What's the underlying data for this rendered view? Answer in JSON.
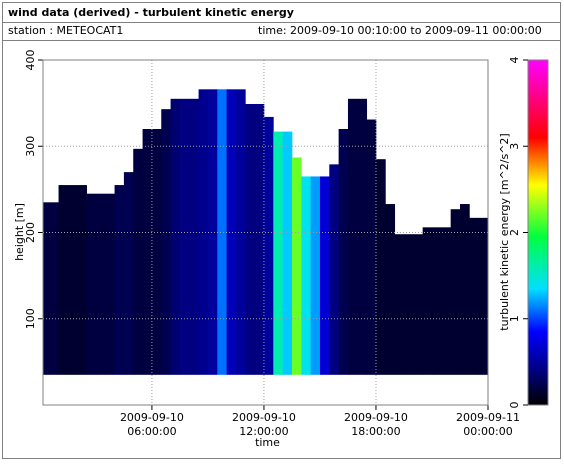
{
  "header": {
    "title": "wind data (derived) - turbulent kinetic energy",
    "station": "station : METEOCAT1",
    "time": "time: 2009-09-10 00:10:00 to 2009-09-11 00:00:00"
  },
  "chart_data": {
    "type": "heatmap-columns",
    "xlabel": "time",
    "ylabel": "height [m]",
    "colorbar_label": "turbulent kinetic energy [m^2/s^2]",
    "xlim": [
      "2009-09-10 00:10:00",
      "2009-09-11 00:00:00"
    ],
    "xticks": [
      {
        "value": "2009-09-10 06:00:00",
        "label": "2009-09-10 06:00:00"
      },
      {
        "value": "2009-09-10 12:00:00",
        "label": "2009-09-10 12:00:00"
      },
      {
        "value": "2009-09-10 18:00:00",
        "label": "2009-09-10 18:00:00"
      },
      {
        "value": "2009-09-11 00:00:00",
        "label": "2009-09-11 00:00:00"
      }
    ],
    "ylim": [
      0,
      400
    ],
    "yticks": [
      100,
      200,
      300,
      400
    ],
    "clim": [
      0,
      4
    ],
    "cticks": [
      0,
      1,
      2,
      3,
      4
    ],
    "colormap": [
      [
        0,
        "#000000"
      ],
      [
        0.4,
        "#000080"
      ],
      [
        0.85,
        "#0000ff"
      ],
      [
        1.35,
        "#00e0ff"
      ],
      [
        1.95,
        "#00ff40"
      ],
      [
        2.55,
        "#ffff00"
      ],
      [
        3.1,
        "#ff0000"
      ],
      [
        4,
        "#ff00ff"
      ]
    ],
    "grid": true,
    "base": 35,
    "x": [
      "2009-09-10 00:00:00",
      "2009-09-10 00:30:00",
      "2009-09-10 01:00:00",
      "2009-09-10 01:30:00",
      "2009-09-10 02:00:00",
      "2009-09-10 02:30:00",
      "2009-09-10 03:00:00",
      "2009-09-10 03:30:00",
      "2009-09-10 04:00:00",
      "2009-09-10 04:30:00",
      "2009-09-10 05:00:00",
      "2009-09-10 05:30:00",
      "2009-09-10 06:00:00",
      "2009-09-10 06:30:00",
      "2009-09-10 07:00:00",
      "2009-09-10 07:30:00",
      "2009-09-10 08:00:00",
      "2009-09-10 08:30:00",
      "2009-09-10 09:00:00",
      "2009-09-10 09:30:00",
      "2009-09-10 10:00:00",
      "2009-09-10 10:30:00",
      "2009-09-10 11:00:00",
      "2009-09-10 11:30:00",
      "2009-09-10 12:00:00",
      "2009-09-10 12:30:00",
      "2009-09-10 13:00:00",
      "2009-09-10 13:30:00",
      "2009-09-10 14:00:00",
      "2009-09-10 14:30:00",
      "2009-09-10 15:00:00",
      "2009-09-10 15:30:00",
      "2009-09-10 16:00:00",
      "2009-09-10 16:30:00",
      "2009-09-10 17:00:00",
      "2009-09-10 17:30:00",
      "2009-09-10 18:00:00",
      "2009-09-10 18:30:00",
      "2009-09-10 19:00:00",
      "2009-09-10 19:30:00",
      "2009-09-10 20:00:00",
      "2009-09-10 20:30:00",
      "2009-09-10 21:00:00",
      "2009-09-10 21:30:00",
      "2009-09-10 22:00:00",
      "2009-09-10 22:30:00",
      "2009-09-10 23:00:00",
      "2009-09-10 23:30:00"
    ],
    "top": [
      235,
      235,
      255,
      255,
      255,
      245,
      245,
      245,
      255,
      270,
      297,
      320,
      320,
      343,
      355,
      355,
      355,
      366,
      366,
      366,
      366,
      366,
      349,
      349,
      334,
      317,
      317,
      287,
      265,
      265,
      265,
      279,
      320,
      355,
      355,
      331,
      285,
      233,
      198,
      198,
      198,
      206,
      206,
      206,
      227,
      233,
      217,
      217
    ],
    "values": [
      0.2,
      0.2,
      0.15,
      0.15,
      0.15,
      0.2,
      0.2,
      0.2,
      0.25,
      0.25,
      0.2,
      0.2,
      0.2,
      0.25,
      0.35,
      0.4,
      0.4,
      0.45,
      0.5,
      1.1,
      0.6,
      0.5,
      0.4,
      0.4,
      0.5,
      1.6,
      1.3,
      2.2,
      1.4,
      1.2,
      0.7,
      0.4,
      0.25,
      0.2,
      0.2,
      0.2,
      0.15,
      0.15,
      0.15,
      0.15,
      0.15,
      0.15,
      0.15,
      0.15,
      0.15,
      0.15,
      0.15,
      0.15
    ]
  }
}
